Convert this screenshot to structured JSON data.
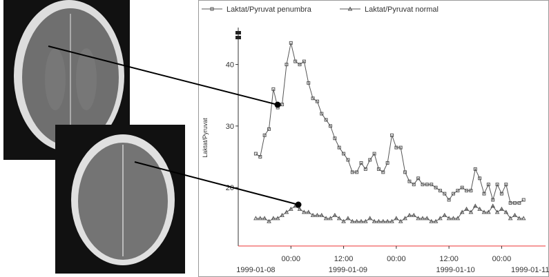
{
  "chart_data": {
    "type": "line",
    "y_label": "Laktat/Pyruvat",
    "x": [
      16,
      17,
      18,
      19,
      20,
      21,
      22,
      23,
      24,
      25,
      26,
      27,
      28,
      29,
      30,
      31,
      32,
      33,
      34,
      35,
      36,
      37,
      38,
      39,
      40,
      41,
      42,
      43,
      44,
      45,
      46,
      47,
      48,
      49,
      50,
      51,
      52,
      53,
      54,
      55,
      56,
      57,
      58,
      59,
      60,
      61,
      62,
      63,
      64,
      65,
      66,
      67,
      68,
      69,
      70,
      71,
      72,
      73,
      74,
      75,
      76,
      77
    ],
    "series": [
      {
        "name": "Laktat/Pyruvat penumbra",
        "color": "#555555",
        "marker": "square",
        "values": [
          25.5,
          25,
          28.5,
          29.5,
          36,
          33,
          33.5,
          40,
          43.5,
          40.5,
          40,
          40.5,
          37,
          34.5,
          34,
          32,
          31,
          30,
          28,
          26.5,
          25.5,
          24.5,
          22.5,
          22.5,
          24,
          23,
          24.5,
          25.5,
          23,
          22.5,
          24,
          28.5,
          26.5,
          26.5,
          22.5,
          21,
          20.5,
          21.5,
          20.5,
          20.5,
          20.5,
          20,
          19.5,
          19,
          18,
          19,
          19.5,
          20,
          19.5,
          19.5,
          23,
          21.5,
          19,
          20.5,
          18,
          20.5,
          19,
          20.5,
          17.5,
          17.5,
          17.5,
          18
        ]
      },
      {
        "name": "Laktat/Pyruvat normal",
        "color": "#555555",
        "marker": "triangle",
        "values": [
          15,
          15,
          15,
          14.5,
          15,
          15,
          15.5,
          16,
          16.5,
          17,
          16.5,
          16,
          16,
          15.5,
          15.5,
          15.5,
          15,
          15,
          15.5,
          15,
          14.5,
          15,
          14.5,
          14.5,
          14.5,
          14.5,
          15,
          14.5,
          14.5,
          14.5,
          14.5,
          14.5,
          15,
          14.5,
          15,
          15.5,
          15.5,
          15,
          15,
          15,
          14.5,
          14.5,
          15,
          15.5,
          15,
          15,
          15,
          16,
          16.5,
          16,
          17,
          16.5,
          16,
          16,
          17,
          16,
          16.5,
          16,
          15,
          15.5,
          15,
          15
        ]
      }
    ],
    "xlim": [
      12,
      82
    ],
    "xticks": [
      {
        "value": 24,
        "label": "00:00"
      },
      {
        "value": 36,
        "label": "12:00"
      },
      {
        "value": 48,
        "label": "00:00"
      },
      {
        "value": 60,
        "label": "12:00"
      },
      {
        "value": 72,
        "label": "00:00"
      }
    ],
    "x_date_ticks": [
      {
        "value": 16,
        "label": "1999-01-08"
      },
      {
        "value": 37,
        "label": "1999-01-09"
      },
      {
        "value": 61.5,
        "label": "1999-01-10"
      },
      {
        "value": 78.5,
        "label": "1999-01-11"
      }
    ],
    "ylim": [
      10.5,
      46
    ],
    "yticks": [
      20,
      30,
      40
    ],
    "legend": "top"
  }
}
